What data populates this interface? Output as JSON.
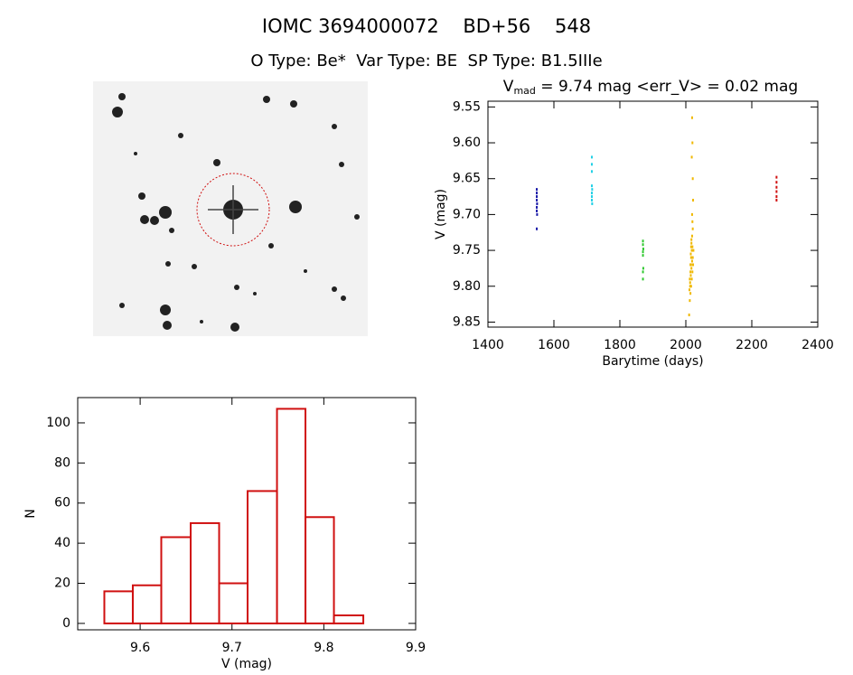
{
  "title": "IOMC 3694000072    BD+56    548",
  "subtitle": "O Type: Be*  Var Type: BE  SP Type: B1.5IIIe",
  "chart_data": [
    {
      "type": "scatter",
      "title": "V",
      "title_subscript": "mad",
      "title_rest": " = 9.74 mag <err_V> = 0.02 mag",
      "x_label": "Barytime (days)",
      "y_label": "V (mag)",
      "xlim": [
        1400,
        2400
      ],
      "xticks": [
        1400,
        1600,
        1800,
        2000,
        2200,
        2400
      ],
      "ylim": [
        9.857,
        9.542
      ],
      "yticks": [
        9.55,
        {
          "value": 9.6,
          "label": "9.60"
        },
        9.65,
        {
          "value": 9.7,
          "label": "9.70"
        },
        9.75,
        {
          "value": 9.8,
          "label": "9.80"
        },
        9.85
      ],
      "series": [
        {
          "color": "#1a1aa8",
          "x": [
            1548,
            1548,
            1548,
            1548,
            1549,
            1548,
            1548,
            1549,
            1548
          ],
          "values": [
            9.665,
            9.67,
            9.675,
            9.68,
            9.685,
            9.69,
            9.695,
            9.7,
            9.72
          ]
        },
        {
          "color": "#22d0e6",
          "x": [
            1715,
            1715,
            1715,
            1715,
            1716,
            1715,
            1715,
            1715,
            1716
          ],
          "values": [
            9.62,
            9.63,
            9.64,
            9.66,
            9.665,
            9.67,
            9.675,
            9.68,
            9.685
          ]
        },
        {
          "color": "#2ec82e",
          "x": [
            1870,
            1870,
            1871,
            1870,
            1870,
            1871,
            1870,
            1870
          ],
          "values": [
            9.737,
            9.742,
            9.748,
            9.752,
            9.757,
            9.775,
            9.78,
            9.79
          ]
        },
        {
          "color": "#f0b800",
          "x": [
            2010,
            2012,
            2014,
            2016,
            2018,
            2020,
            2022,
            2011,
            2013,
            2015,
            2017,
            2019,
            2021,
            2023,
            2012,
            2014,
            2016,
            2018,
            2020,
            2015,
            2017,
            2019,
            2021,
            2013,
            2016,
            2018,
            2020,
            2022,
            2014,
            2017,
            2019,
            2021,
            2016,
            2018,
            2020,
            2019
          ],
          "values": [
            9.84,
            9.82,
            9.81,
            9.8,
            9.79,
            9.78,
            9.77,
            9.805,
            9.795,
            9.785,
            9.775,
            9.765,
            9.76,
            9.75,
            9.79,
            9.78,
            9.77,
            9.76,
            9.745,
            9.755,
            9.74,
            9.73,
            9.72,
            9.8,
            9.76,
            9.75,
            9.71,
            9.68,
            9.77,
            9.735,
            9.7,
            9.65,
            9.745,
            9.62,
            9.6,
            9.565
          ]
        },
        {
          "color": "#d01010",
          "x": [
            2275,
            2275,
            2275,
            2275,
            2275,
            2275
          ],
          "values": [
            9.648,
            9.655,
            9.662,
            9.668,
            9.675,
            9.68
          ]
        }
      ]
    },
    {
      "type": "histogram",
      "x_label": "V (mag)",
      "y_label": "N",
      "color": "#d01010",
      "bins": [
        9.561,
        9.592,
        9.623,
        9.655,
        9.686,
        9.717,
        9.749,
        9.78,
        9.811,
        9.843
      ],
      "values": [
        16,
        19,
        43,
        50,
        20,
        66,
        107,
        53,
        4
      ],
      "xlim": [
        9.532,
        9.9
      ],
      "xticks": [
        9.6,
        9.7,
        9.8,
        9.9
      ],
      "ylim": [
        -3.2,
        112.6
      ],
      "yticks": [
        0,
        20,
        40,
        60,
        80,
        100
      ]
    }
  ]
}
